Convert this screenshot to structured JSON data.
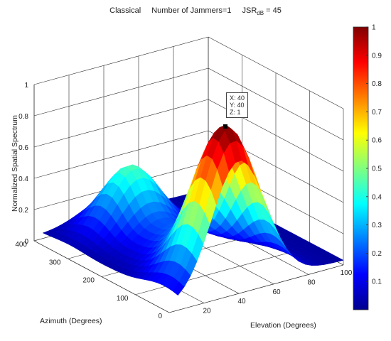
{
  "title": {
    "method": "Classical",
    "jammers": "Number of Jammers=1",
    "jsr_prefix": "JSR",
    "jsr_sub": "dB",
    "jsr_suffix": " = 45"
  },
  "datatip": {
    "x": "X: 40",
    "y": "Y: 40",
    "z": "Z: 1"
  },
  "chart_data": {
    "type": "surface",
    "xlabel": "Elevation (Degrees)",
    "ylabel": "Azimuth (Degrees)",
    "zlabel": "Normalized Spatial Spectrum",
    "xlim": [
      0,
      100
    ],
    "ylim": [
      0,
      400
    ],
    "zlim": [
      0,
      1
    ],
    "x_ticks": [
      "20",
      "40",
      "60",
      "80",
      "100"
    ],
    "y_ticks": [
      "0",
      "100",
      "200",
      "300",
      "400"
    ],
    "z_ticks": [
      "0",
      "0.2",
      "0.4",
      "0.6",
      "0.8",
      "1"
    ],
    "peak": {
      "x": 40,
      "y": 40,
      "z": 1
    },
    "secondary_peak": {
      "x": 40,
      "y": 320,
      "z": 0.42
    },
    "colorbar": {
      "colormap": "jet",
      "range": [
        0,
        1
      ],
      "ticks": [
        "0.1",
        "0.2",
        "0.3",
        "0.4",
        "0.5",
        "0.6",
        "0.7",
        "0.8",
        "0.9",
        "1"
      ]
    },
    "grid": true
  }
}
